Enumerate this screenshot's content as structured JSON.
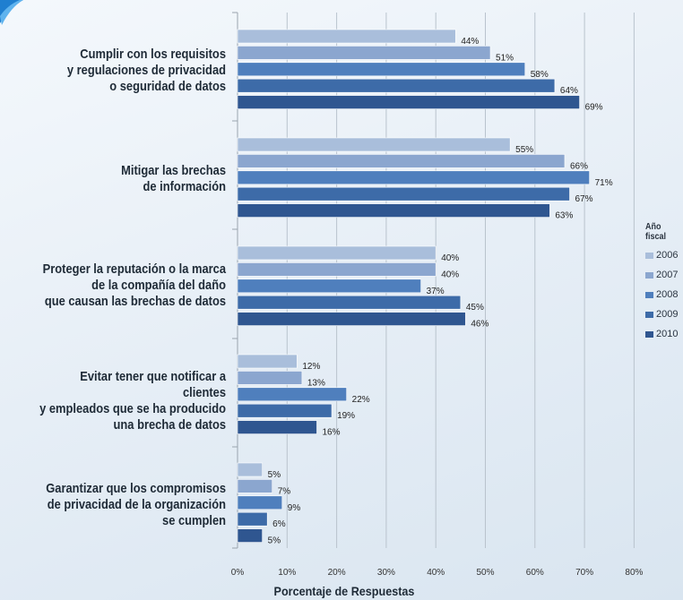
{
  "chart_data": {
    "type": "bar",
    "orientation": "horizontal",
    "xlabel": "Porcentaje de Respuestas",
    "xlim": [
      0,
      80
    ],
    "xticks": [
      "0%",
      "10%",
      "20%",
      "30%",
      "40%",
      "50%",
      "60%",
      "70%",
      "80%"
    ],
    "grid": true,
    "legend_title": [
      "Año",
      "fiscal"
    ],
    "legend_position": "right",
    "categories": [
      [
        "Cumplir con los requisitos",
        "y regulaciones de privacidad",
        "o seguridad de datos"
      ],
      [
        "Mitigar las brechas",
        "de información"
      ],
      [
        "Proteger la reputación o la marca",
        "de la compañía del daño",
        "que causan las brechas de datos"
      ],
      [
        "Evitar tener que notificar a clientes",
        "y empleados que se ha producido",
        "una brecha de datos"
      ],
      [
        "Garantizar que los compromisos",
        "de privacidad de la organización",
        "se cumplen"
      ]
    ],
    "series": [
      {
        "name": "2006",
        "color": "#a9bedb",
        "values": [
          44,
          55,
          40,
          12,
          5
        ],
        "labels": [
          "44%",
          "55%",
          "40%",
          "12%",
          "5%"
        ]
      },
      {
        "name": "2007",
        "color": "#8ba6cf",
        "values": [
          51,
          66,
          40,
          13,
          7
        ],
        "labels": [
          "51%",
          "66%",
          "40%",
          "13%",
          "7%"
        ]
      },
      {
        "name": "2008",
        "color": "#4f7fbd",
        "values": [
          58,
          71,
          37,
          22,
          9
        ],
        "labels": [
          "58%",
          "71%",
          "37%",
          "22%",
          "9%"
        ]
      },
      {
        "name": "2009",
        "color": "#3d6ba8",
        "values": [
          64,
          67,
          45,
          19,
          6
        ],
        "labels": [
          "64%",
          "67%",
          "45%",
          "19%",
          "6%"
        ]
      },
      {
        "name": "2010",
        "color": "#2f5690",
        "values": [
          69,
          63,
          46,
          16,
          5
        ],
        "labels": [
          "69%",
          "63%",
          "46%",
          "16%",
          "5%"
        ]
      }
    ]
  }
}
